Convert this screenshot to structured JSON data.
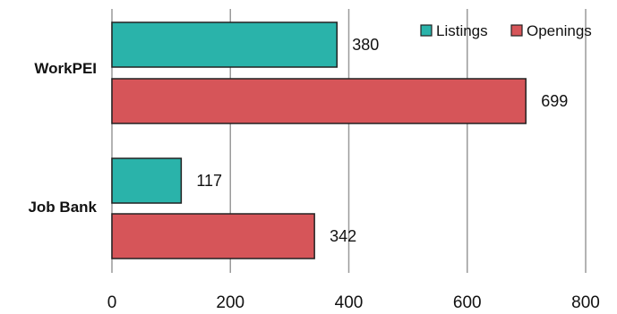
{
  "chart_data": {
    "type": "bar",
    "orientation": "horizontal",
    "categories": [
      "WorkPEI",
      "Job Bank"
    ],
    "series": [
      {
        "name": "Listings",
        "values": [
          380,
          117
        ],
        "color": "#2ab3aa"
      },
      {
        "name": "Openings",
        "values": [
          699,
          342
        ],
        "color": "#d65559"
      }
    ],
    "xlim": [
      0,
      800
    ],
    "x_ticks": [
      0,
      200,
      400,
      600,
      800
    ],
    "grid": true,
    "legend": "top-right",
    "data_labels": true
  }
}
